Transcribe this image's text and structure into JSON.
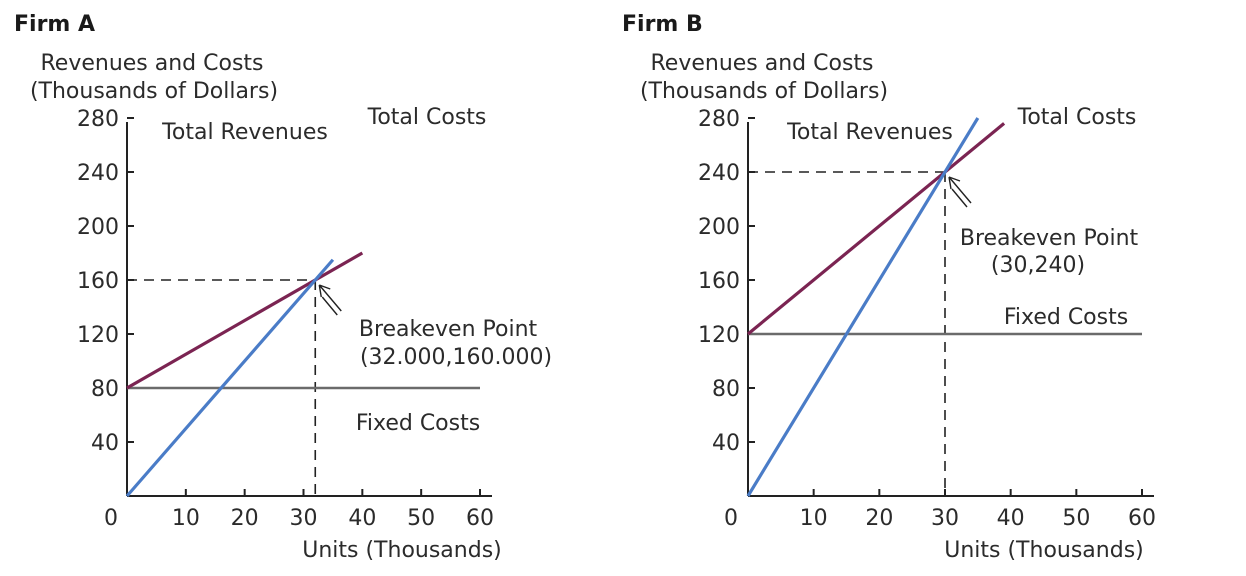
{
  "colors": {
    "total_revenues": "#4a7cc7",
    "total_costs": "#7b2452",
    "fixed_costs": "#6b6b6b",
    "axis": "#222222",
    "guide": "#222222"
  },
  "chart_data": [
    {
      "type": "line",
      "title": "Firm A",
      "ylabel_line1": "Revenues and Costs",
      "ylabel_line2": "(Thousands of Dollars)",
      "xlabel": "Units (Thousands)",
      "xlim": [
        0,
        60
      ],
      "ylim": [
        0,
        280
      ],
      "x_ticks": [
        "0",
        "10",
        "20",
        "30",
        "40",
        "50",
        "60"
      ],
      "y_ticks": [
        "40",
        "80",
        "120",
        "160",
        "200",
        "240",
        "280"
      ],
      "series": [
        {
          "name": "Total Revenues",
          "points": [
            [
              0,
              0
            ],
            [
              35,
              175
            ]
          ]
        },
        {
          "name": "Total Costs",
          "points": [
            [
              0,
              80
            ],
            [
              40,
              180
            ]
          ]
        },
        {
          "name": "Fixed Costs",
          "points": [
            [
              0,
              80
            ],
            [
              60,
              80
            ]
          ]
        }
      ],
      "breakeven": {
        "x": 32,
        "y": 160,
        "label": "Breakeven Point",
        "coords": "(32.000,160.000)"
      }
    },
    {
      "type": "line",
      "title": "Firm B",
      "ylabel_line1": "Revenues and Costs",
      "ylabel_line2": "(Thousands of Dollars)",
      "xlabel": "Units (Thousands)",
      "xlim": [
        0,
        60
      ],
      "ylim": [
        0,
        280
      ],
      "x_ticks": [
        "0",
        "10",
        "20",
        "30",
        "40",
        "50",
        "60"
      ],
      "y_ticks": [
        "40",
        "80",
        "120",
        "160",
        "200",
        "240",
        "280"
      ],
      "series": [
        {
          "name": "Total Revenues",
          "points": [
            [
              0,
              0
            ],
            [
              35,
              280
            ]
          ]
        },
        {
          "name": "Total Costs",
          "points": [
            [
              0,
              120
            ],
            [
              39,
              276
            ]
          ]
        },
        {
          "name": "Fixed Costs",
          "points": [
            [
              0,
              120
            ],
            [
              60,
              120
            ]
          ]
        }
      ],
      "breakeven": {
        "x": 30,
        "y": 240,
        "label": "Breakeven Point",
        "coords": "(30,240)"
      }
    }
  ]
}
